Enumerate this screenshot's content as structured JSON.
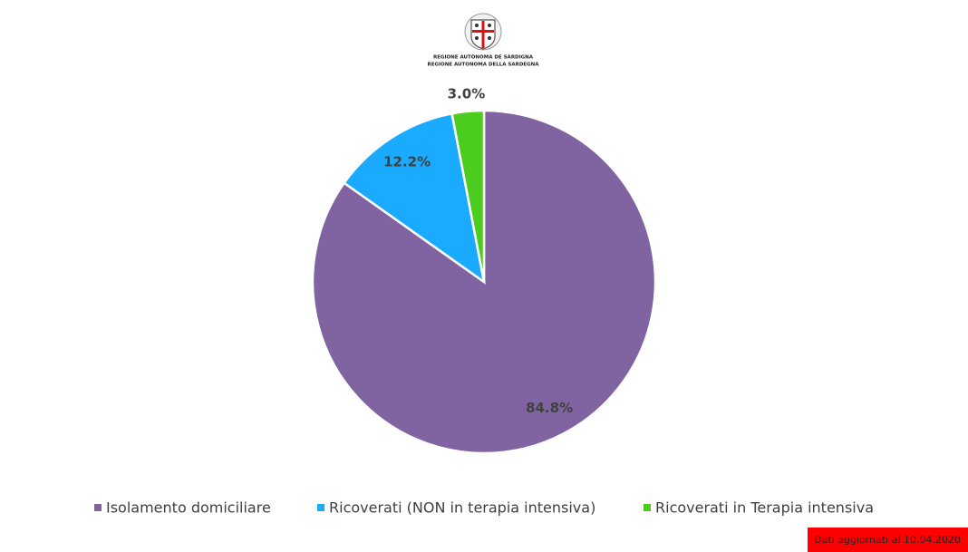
{
  "header": {
    "line1": "REGIONE AUTÒNOMA DE SARDIGNA",
    "line2": "REGIONE AUTONOMA DELLA SARDEGNA"
  },
  "chart_data": {
    "type": "pie",
    "categories": [
      "Isolamento domiciliare",
      "Ricoverati (NON in terapia intensiva)",
      "Ricoverati in Terapia intensiva"
    ],
    "values": [
      84.8,
      12.2,
      3.0
    ],
    "value_labels": [
      "84.8%",
      "12.2%",
      "3.0%"
    ],
    "colors": [
      "#8064a2",
      "#1aabff",
      "#4ccc1e"
    ]
  },
  "footer": {
    "note": "Dati aggiornati al 10.04.2020"
  }
}
